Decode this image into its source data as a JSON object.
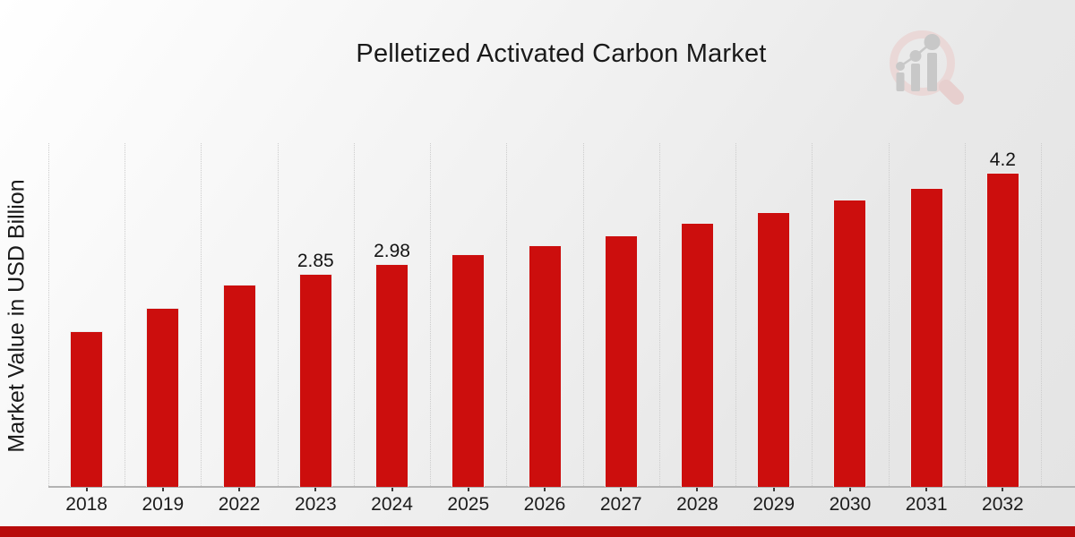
{
  "branding": {
    "logo": "magnifier-growth-bars-logo"
  },
  "colors": {
    "bar": "#cc0e0d",
    "bar_edge": "#ededed",
    "footer_bar": "#b80b0b",
    "axis_line": "#b3b3b3",
    "tick": "#3a3a3a",
    "grid_line": "#cccccc",
    "text": "#1a1a1a",
    "logo_ring": "#ead8d7",
    "logo_handle": "#e7cfce",
    "logo_bars": "#c8c8c8"
  },
  "chart_data": {
    "type": "bar",
    "title": "Pelletized Activated Carbon Market",
    "ylabel": "Market Value in USD Billion",
    "xlabel": "",
    "categories": [
      "2018",
      "2019",
      "2022",
      "2023",
      "2024",
      "2025",
      "2026",
      "2027",
      "2028",
      "2029",
      "2030",
      "2031",
      "2032"
    ],
    "values": [
      2.09,
      2.4,
      2.71,
      2.85,
      2.98,
      3.11,
      3.24,
      3.37,
      3.53,
      3.68,
      3.84,
      4.0,
      4.2
    ],
    "bar_labels": [
      "",
      "",
      "",
      "2.85",
      "2.98",
      "",
      "",
      "",
      "",
      "",
      "",
      "",
      "4.2"
    ],
    "ylim": [
      0,
      4.6
    ],
    "grid": "vertical-dotted-category-boundaries",
    "legend": "none"
  }
}
